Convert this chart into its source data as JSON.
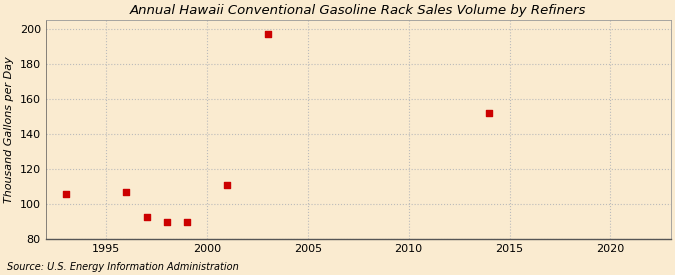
{
  "title": "Annual Hawaii Conventional Gasoline Rack Sales Volume by Refiners",
  "ylabel": "Thousand Gallons per Day",
  "source": "Source: U.S. Energy Information Administration",
  "background_color": "#faebd0",
  "plot_background_color": "#faebd0",
  "marker_color": "#cc0000",
  "marker_style": "s",
  "marker_size": 18,
  "xlim": [
    1992,
    2023
  ],
  "ylim": [
    80,
    205
  ],
  "yticks": [
    80,
    100,
    120,
    140,
    160,
    180,
    200
  ],
  "xticks": [
    1995,
    2000,
    2005,
    2010,
    2015,
    2020
  ],
  "grid_color": "#bbbbbb",
  "grid_style": ":",
  "title_fontsize": 9.5,
  "tick_fontsize": 8,
  "ylabel_fontsize": 8,
  "source_fontsize": 7,
  "data_points": {
    "years": [
      1993,
      1996,
      1997,
      1998,
      1999,
      2001,
      2003,
      2014
    ],
    "values": [
      106,
      107,
      93,
      90,
      90,
      111,
      197,
      152
    ]
  }
}
